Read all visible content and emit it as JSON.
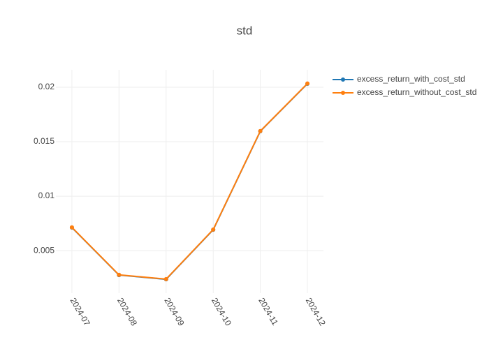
{
  "chart_data": {
    "type": "line",
    "title": "std",
    "categories": [
      "2024-07",
      "2024-08",
      "2024-09",
      "2024-10",
      "2024-11",
      "2024-12"
    ],
    "series": [
      {
        "name": "excess_return_with_cost_std",
        "color": "#1f77b4",
        "values": [
          0.00712,
          0.00276,
          0.00237,
          0.00692,
          0.01596,
          0.02032
        ]
      },
      {
        "name": "excess_return_without_cost_std",
        "color": "#ff7f0e",
        "values": [
          0.00714,
          0.00278,
          0.00239,
          0.00694,
          0.01598,
          0.02034
        ]
      }
    ],
    "ylim": [
      0.0011,
      0.0216
    ],
    "yticks": [
      0.005,
      0.01,
      0.015,
      0.02
    ],
    "grid": true,
    "legend": "top-right"
  }
}
